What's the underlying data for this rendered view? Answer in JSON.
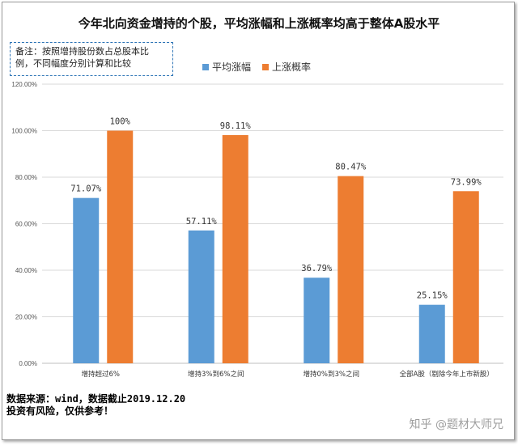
{
  "title": "今年北向资金增持的个股，平均涨幅和上涨概率均高于整体A股水平",
  "note": {
    "line1": "备注：按照增持股份数占总股本比",
    "line2": "例，不同幅度分别计算和比较"
  },
  "source": {
    "line1": "数据来源：wind，数据截止2019.12.20",
    "line2": "投资有风险，仅供参考！"
  },
  "watermark": "知乎 @题材大师兄",
  "colors": {
    "series1": "#5b9bd5",
    "series2": "#ed7d31",
    "grid": "#d9d9d9",
    "axis": "#bfbfbf"
  },
  "chart_data": {
    "type": "bar",
    "title": "今年北向资金增持的个股，平均涨幅和上涨概率均高于整体A股水平",
    "categories": [
      "增持超过6%",
      "增持3%到6%之间",
      "增持0%到3%之间",
      "全部A股（剔除今年上市新股）"
    ],
    "series": [
      {
        "name": "平均涨幅",
        "values": [
          71.07,
          57.11,
          36.79,
          25.15
        ],
        "labels": [
          "71.07%",
          "57.11%",
          "36.79%",
          "25.15%"
        ]
      },
      {
        "name": "上涨概率",
        "values": [
          100,
          98.11,
          80.47,
          73.99
        ],
        "labels": [
          "100%",
          "98.11%",
          "80.47%",
          "73.99%"
        ]
      }
    ],
    "ylim": [
      0,
      120
    ],
    "yticks": [
      0,
      20,
      40,
      60,
      80,
      100,
      120
    ],
    "ytick_labels": [
      "0.00%",
      "20.00%",
      "40.00%",
      "60.00%",
      "80.00%",
      "100.00%",
      "120.00%"
    ],
    "grid": true,
    "legend": "top-center",
    "xlabel": "",
    "ylabel": ""
  }
}
